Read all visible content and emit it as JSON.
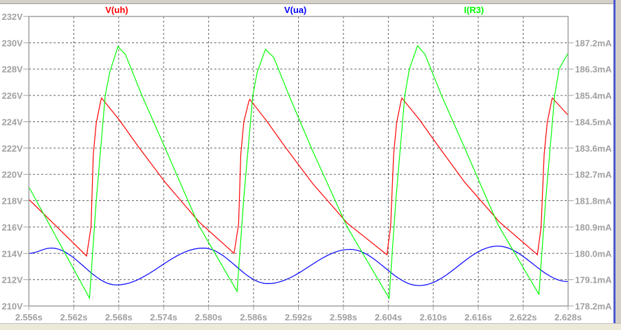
{
  "chart_data": {
    "type": "line",
    "title": "",
    "xlabel": "",
    "ylabel_left": "",
    "ylabel_right": "",
    "xlim": [
      2.556,
      2.628
    ],
    "ylim_left": [
      210,
      232
    ],
    "ylim_right": [
      178.2,
      188.1
    ],
    "grid": true,
    "x_ticks": [
      "2.556s",
      "2.562s",
      "2.568s",
      "2.574s",
      "2.580s",
      "2.586s",
      "2.592s",
      "2.598s",
      "2.604s",
      "2.610s",
      "2.616s",
      "2.622s",
      "2.628s"
    ],
    "x_tick_values": [
      2.556,
      2.562,
      2.568,
      2.574,
      2.58,
      2.586,
      2.592,
      2.598,
      2.604,
      2.61,
      2.616,
      2.622,
      2.628
    ],
    "y_left_ticks": [
      "210V",
      "212V",
      "214V",
      "216V",
      "218V",
      "220V",
      "222V",
      "224V",
      "226V",
      "228V",
      "230V",
      "232V"
    ],
    "y_left_tick_values": [
      210,
      212,
      214,
      216,
      218,
      220,
      222,
      224,
      226,
      228,
      230,
      232
    ],
    "y_right_ticks": [
      "178.2mA",
      "179.1mA",
      "180.0mA",
      "180.9mA",
      "181.8mA",
      "182.7mA",
      "183.6mA",
      "184.5mA",
      "185.4mA",
      "186.3mA",
      "187.2mA"
    ],
    "y_right_tick_values": [
      178.2,
      179.1,
      180.0,
      180.9,
      181.8,
      182.7,
      183.6,
      184.5,
      185.4,
      186.3,
      187.2
    ],
    "series": [
      {
        "name": "V(uh)",
        "color": "#ff0000",
        "axis": "left",
        "x": [
          2.556,
          2.5637,
          2.5643,
          2.5646,
          2.565,
          2.5656,
          2.5657,
          2.568,
          2.5705,
          2.5742,
          2.5787,
          2.5834,
          2.584,
          2.5843,
          2.5847,
          2.5854,
          2.5855,
          2.5877,
          2.5902,
          2.5939,
          2.5985,
          2.6038,
          2.6043,
          2.6047,
          2.6051,
          2.6057,
          2.6058,
          2.6081,
          2.6106,
          2.6142,
          2.6188,
          2.6239,
          2.6244,
          2.6248,
          2.6252,
          2.6258,
          2.6259,
          2.628
        ],
        "y": [
          218.1,
          213.8,
          216.0,
          221.5,
          223.9,
          225.6,
          225.8,
          224.2,
          222.2,
          219.4,
          216.4,
          214.0,
          216.2,
          221.5,
          224.0,
          225.6,
          225.7,
          224.1,
          222.1,
          219.3,
          216.3,
          213.9,
          216.0,
          221.5,
          223.9,
          225.6,
          225.8,
          224.2,
          222.2,
          219.4,
          216.4,
          213.9,
          216.0,
          221.5,
          223.9,
          225.6,
          225.8,
          224.5
        ]
      },
      {
        "name": "V(ua)",
        "color": "#0000ff",
        "axis": "left",
        "x": [
          2.556,
          2.559,
          2.5677,
          2.5793,
          2.5879,
          2.5989,
          2.6081,
          2.6186,
          2.628
        ],
        "y": [
          214.0,
          214.4,
          211.6,
          214.4,
          211.7,
          214.3,
          211.55,
          214.55,
          211.85
        ]
      },
      {
        "name": "I(R3)",
        "color": "#00ff00",
        "axis": "right",
        "x": [
          2.556,
          2.5641,
          2.565,
          2.5662,
          2.5668,
          2.5679,
          2.5689,
          2.5711,
          2.5742,
          2.5787,
          2.5838,
          2.5847,
          2.5859,
          2.5865,
          2.5876,
          2.5887,
          2.5909,
          2.5939,
          2.5985,
          2.6041,
          2.605,
          2.6062,
          2.6068,
          2.6079,
          2.6089,
          2.6111,
          2.6142,
          2.6187,
          2.6241,
          2.625,
          2.6262,
          2.6268,
          2.628
        ],
        "y": [
          182.27,
          178.47,
          181.8,
          185.4,
          186.2,
          187.07,
          186.8,
          185.4,
          183.6,
          180.95,
          178.7,
          181.9,
          185.4,
          186.2,
          186.98,
          186.7,
          185.3,
          183.5,
          180.9,
          178.47,
          181.8,
          185.4,
          186.3,
          187.1,
          186.8,
          185.4,
          183.6,
          180.95,
          178.6,
          181.8,
          185.4,
          186.3,
          186.85
        ]
      }
    ]
  }
}
